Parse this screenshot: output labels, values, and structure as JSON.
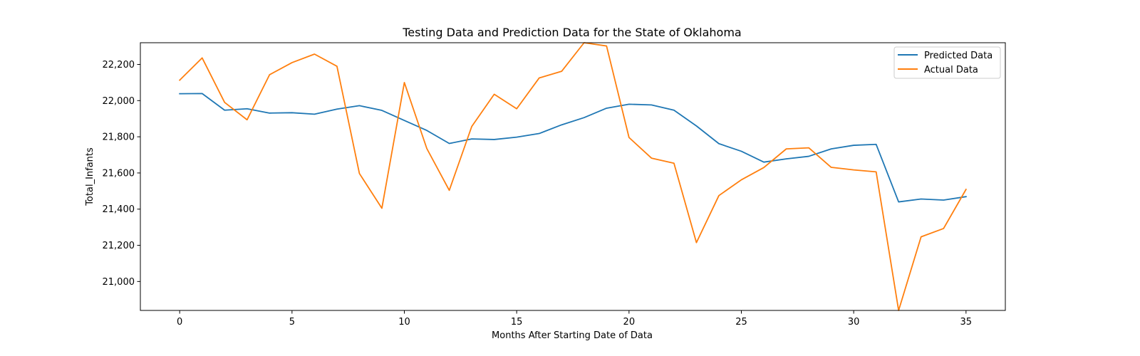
{
  "chart_data": {
    "type": "line",
    "title": "Testing Data and Prediction Data for the State of Oklahoma",
    "xlabel": "Months After Starting Date of Data",
    "ylabel": "Total_Infants",
    "x": [
      0,
      1,
      2,
      3,
      4,
      5,
      6,
      7,
      8,
      9,
      10,
      11,
      12,
      13,
      14,
      15,
      16,
      17,
      18,
      19,
      20,
      21,
      22,
      23,
      24,
      25,
      26,
      27,
      28,
      29,
      30,
      31,
      32,
      33,
      34,
      35
    ],
    "xlim": [
      -1.75,
      36.75
    ],
    "ylim": [
      20840,
      22320
    ],
    "xticks": [
      0,
      5,
      10,
      15,
      20,
      25,
      30,
      35
    ],
    "yticks": [
      21000,
      21200,
      21400,
      21600,
      21800,
      22000,
      22200
    ],
    "ytick_labels": [
      "21,000",
      "21,200",
      "21,400",
      "21,600",
      "21,800",
      "22,000",
      "22,200"
    ],
    "grid": false,
    "legend_position": "top-right",
    "series": [
      {
        "name": "Predicted Data",
        "color": "#1f77b4",
        "values": [
          22038,
          22039,
          21947,
          21955,
          21931,
          21933,
          21925,
          21953,
          21972,
          21946,
          21890,
          21835,
          21763,
          21788,
          21785,
          21798,
          21818,
          21866,
          21906,
          21958,
          21980,
          21976,
          21947,
          21860,
          21762,
          21720,
          21660,
          21678,
          21692,
          21733,
          21753,
          21758,
          21440,
          21456,
          21450,
          21469
        ]
      },
      {
        "name": "Actual Data",
        "color": "#ff7f0e",
        "values": [
          22113,
          22236,
          21990,
          21894,
          22143,
          22210,
          22257,
          22190,
          21597,
          21405,
          22100,
          21735,
          21504,
          21857,
          22035,
          21955,
          22125,
          22162,
          22320,
          22302,
          21796,
          21682,
          21654,
          21215,
          21475,
          21562,
          21630,
          21733,
          21739,
          21631,
          21617,
          21606,
          20840,
          21247,
          21293,
          21509
        ]
      }
    ]
  }
}
